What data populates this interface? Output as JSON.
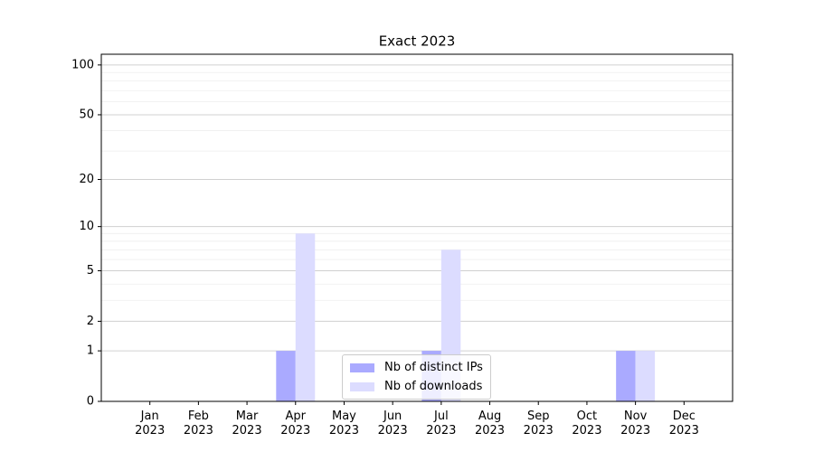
{
  "chart_data": {
    "type": "bar",
    "title": "Exact 2023",
    "categories": [
      "Jan\n2023",
      "Feb\n2023",
      "Mar\n2023",
      "Apr\n2023",
      "May\n2023",
      "Jun\n2023",
      "Jul\n2023",
      "Aug\n2023",
      "Sep\n2023",
      "Oct\n2023",
      "Nov\n2023",
      "Dec\n2023"
    ],
    "series": [
      {
        "name": "Nb of distinct IPs",
        "color": "#aaaaff",
        "values": [
          0,
          0,
          0,
          1,
          0,
          0,
          1,
          0,
          0,
          0,
          1,
          0
        ]
      },
      {
        "name": "Nb of downloads",
        "color": "#dcdcff",
        "values": [
          0,
          0,
          0,
          9,
          0,
          0,
          7,
          0,
          0,
          0,
          1,
          0
        ]
      }
    ],
    "yscale": "symlog",
    "ylim": [
      0,
      116
    ],
    "yticks": [
      0,
      1,
      2,
      5,
      10,
      20,
      50,
      100
    ],
    "yminorticks": [
      3,
      4,
      6,
      7,
      8,
      9,
      30,
      40,
      60,
      70,
      80,
      90
    ],
    "grid": true,
    "legend": "lower center"
  }
}
